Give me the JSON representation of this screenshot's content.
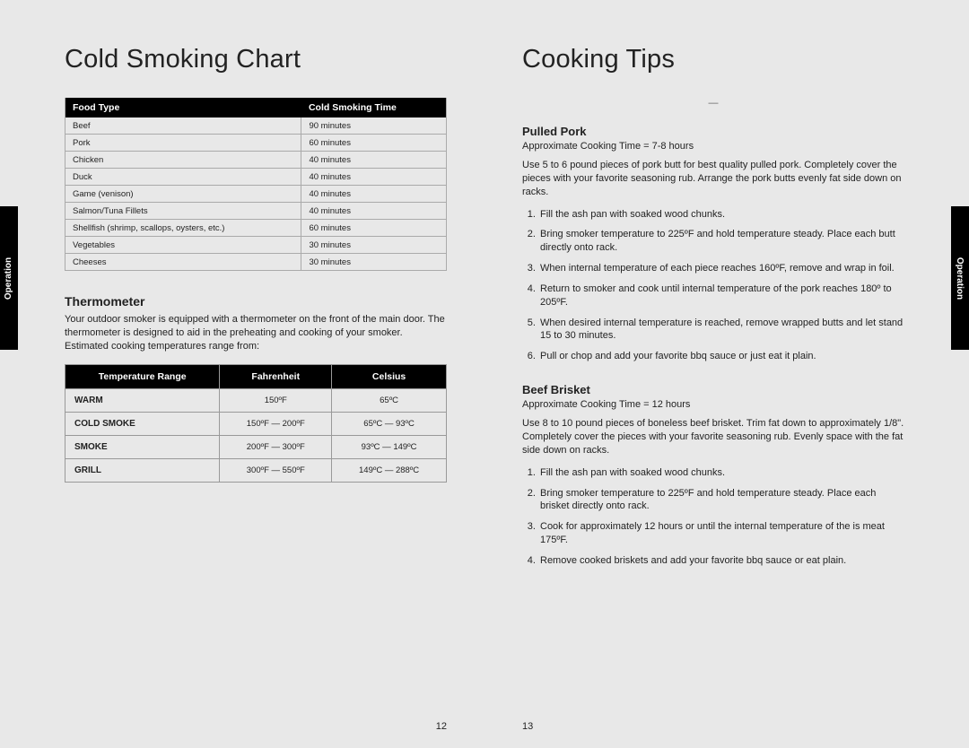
{
  "left": {
    "title": "Cold Smoking Chart",
    "tab": "Operation",
    "pageNum": "12",
    "smokingTable": {
      "headers": [
        "Food Type",
        "Cold Smoking Time"
      ],
      "rows": [
        [
          "Beef",
          "90 minutes"
        ],
        [
          "Pork",
          "60 minutes"
        ],
        [
          "Chicken",
          "40 minutes"
        ],
        [
          "Duck",
          "40 minutes"
        ],
        [
          "Game (venison)",
          "40 minutes"
        ],
        [
          "Salmon/Tuna Fillets",
          "40 minutes"
        ],
        [
          "Shellfish (shrimp, scallops, oysters, etc.)",
          "60 minutes"
        ],
        [
          "Vegetables",
          "30 minutes"
        ],
        [
          "Cheeses",
          "30 minutes"
        ]
      ]
    },
    "thermo": {
      "heading": "Thermometer",
      "text": "Your outdoor smoker is equipped with a thermometer on the front of the main door. The thermometer is designed to aid in the preheating and cooking of your smoker. Estimated cooking temperatures range from:",
      "headers": [
        "Temperature Range",
        "Fahrenheit",
        "Celsius"
      ],
      "rows": [
        [
          "WARM",
          "150ºF",
          "65ºC"
        ],
        [
          "COLD SMOKE",
          "150ºF — 200ºF",
          "65ºC — 93ºC"
        ],
        [
          "SMOKE",
          "200ºF — 300ºF",
          "93ºC — 149ºC"
        ],
        [
          "GRILL",
          "300ºF — 550ºF",
          "149ºC — 288ºC"
        ]
      ]
    }
  },
  "right": {
    "title": "Cooking Tips",
    "tab": "Operation",
    "pageNum": "13",
    "recipes": [
      {
        "name": "Pulled Pork",
        "time": "Approximate Cooking Time = 7-8 hours",
        "intro": "Use 5 to 6 pound pieces of pork butt for best quality pulled pork. Completely cover the pieces with your favorite seasoning rub. Arrange the pork butts evenly fat side down on racks.",
        "steps": [
          "Fill the ash pan with soaked wood chunks.",
          "Bring smoker temperature to 225ºF and hold temperature steady. Place each butt directly onto rack.",
          "When internal temperature of each piece reaches 160ºF, remove and wrap in foil.",
          "Return to smoker and cook until internal temperature of the pork reaches 180º to 205ºF.",
          "When desired internal temperature is reached, remove wrapped butts and let stand 15 to 30 minutes.",
          "Pull or chop and add your favorite bbq sauce or just eat it plain."
        ]
      },
      {
        "name": "Beef Brisket",
        "time": "Approximate Cooking Time = 12 hours",
        "intro": "Use 8 to 10 pound pieces of boneless beef brisket. Trim fat down to approximately 1/8\". Completely cover the pieces with your favorite seasoning rub. Evenly space with the fat side down on racks.",
        "steps": [
          "Fill the ash pan with soaked wood chunks.",
          "Bring smoker temperature to 225ºF and hold temperature steady. Place each brisket directly onto rack.",
          "Cook for approximately 12 hours or until the internal temperature of the is meat 175ºF.",
          "Remove cooked briskets and add your favorite bbq sauce or eat plain."
        ]
      }
    ]
  }
}
